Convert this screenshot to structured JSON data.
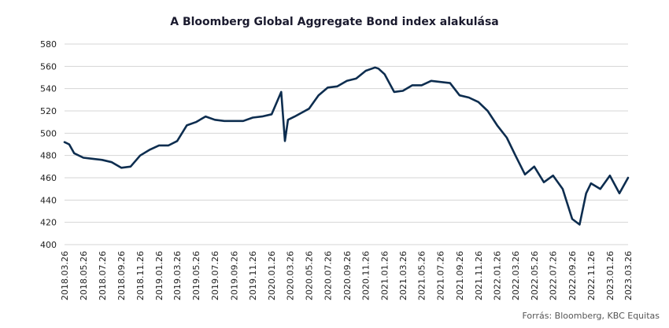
{
  "title": "A Bloomberg Global Aggregate Bond index alakulása",
  "source": "Forrás: Bloomberg, KBC Equitas",
  "colors": {
    "line": "#0d2d4f",
    "grid": "#d4d4d4"
  },
  "chart_data": {
    "type": "line",
    "title": "A Bloomberg Global Aggregate Bond index alakulása",
    "xlabel": "",
    "ylabel": "",
    "ylim": [
      400,
      580
    ],
    "yticks": [
      400,
      420,
      440,
      460,
      480,
      500,
      520,
      540,
      560,
      580
    ],
    "grid": true,
    "categories": [
      "2018.03.26",
      "2018.05.26",
      "2018.07.26",
      "2018.09.26",
      "2018.11.26",
      "2019.01.26",
      "2019.03.26",
      "2019.05.26",
      "2019.07.26",
      "2019.09.26",
      "2019.11.26",
      "2020.01.26",
      "2020.03.26",
      "2020.05.26",
      "2020.07.26",
      "2020.09.26",
      "2020.11.26",
      "2021.01.26",
      "2021.03.26",
      "2021.05.26",
      "2021.07.26",
      "2021.09.26",
      "2021.11.26",
      "2022.01.26",
      "2022.03.26",
      "2022.05.26",
      "2022.07.26",
      "2022.09.26",
      "2022.11.26",
      "2023.01.26",
      "2023.03.26"
    ],
    "series": [
      {
        "x": [
          "2018.03.26",
          "2018.04.10",
          "2018.04.26",
          "2018.05.26",
          "2018.06.26",
          "2018.07.26",
          "2018.08.26",
          "2018.09.26",
          "2018.10.26",
          "2018.11.26",
          "2018.12.26",
          "2019.01.26",
          "2019.02.26",
          "2019.03.26",
          "2019.04.26",
          "2019.05.26",
          "2019.06.26",
          "2019.07.26",
          "2019.08.26",
          "2019.09.26",
          "2019.10.26",
          "2019.11.26",
          "2019.12.26",
          "2020.01.26",
          "2020.02.26",
          "2020.03.09",
          "2020.03.19",
          "2020.04.10",
          "2020.05.26",
          "2020.06.26",
          "2020.07.26",
          "2020.08.26",
          "2020.09.26",
          "2020.10.26",
          "2020.11.26",
          "2020.12.26",
          "2021.01.06",
          "2021.01.26",
          "2021.02.26",
          "2021.03.26",
          "2021.04.26",
          "2021.05.26",
          "2021.06.26",
          "2021.07.26",
          "2021.08.26",
          "2021.09.26",
          "2021.10.26",
          "2021.11.26",
          "2021.12.26",
          "2022.01.26",
          "2022.02.26",
          "2022.03.26",
          "2022.04.26",
          "2022.05.26",
          "2022.06.26",
          "2022.07.26",
          "2022.08.26",
          "2022.09.26",
          "2022.10.20",
          "2022.11.10",
          "2022.11.26",
          "2022.12.26",
          "2023.01.26",
          "2023.02.26",
          "2023.03.26"
        ],
        "values": [
          492,
          490,
          482,
          478,
          477,
          476,
          474,
          469,
          470,
          480,
          485,
          489,
          489,
          493,
          507,
          510,
          515,
          512,
          511,
          511,
          511,
          514,
          515,
          517,
          537,
          493,
          512,
          515,
          522,
          534,
          541,
          542,
          547,
          549,
          556,
          559,
          558,
          553,
          537,
          538,
          543,
          543,
          547,
          546,
          545,
          534,
          532,
          528,
          520,
          507,
          496,
          480,
          463,
          470,
          456,
          462,
          450,
          423,
          418,
          446,
          455,
          450,
          462,
          446,
          460
        ]
      }
    ]
  }
}
